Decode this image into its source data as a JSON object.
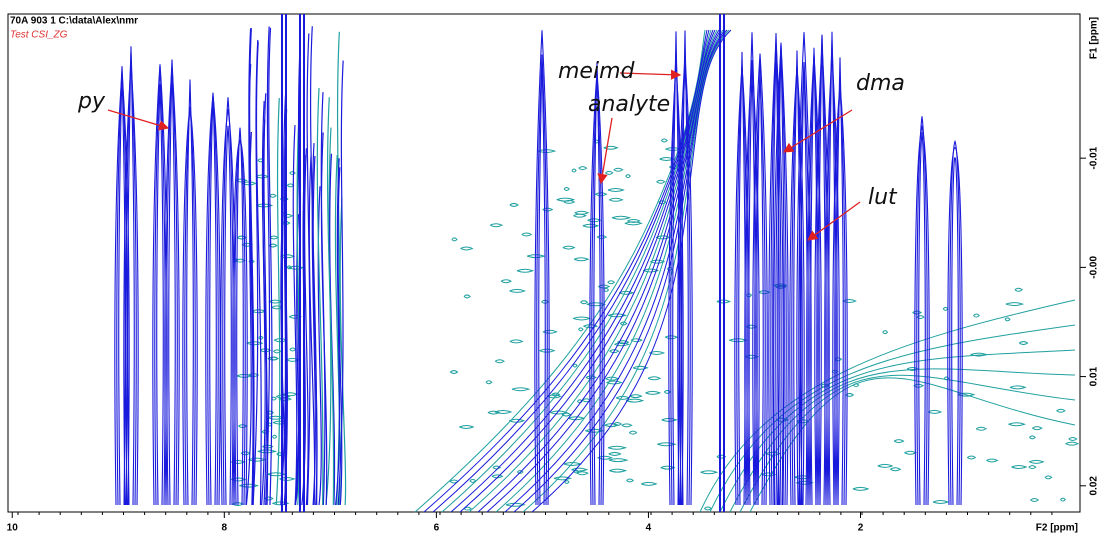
{
  "chart_data": {
    "type": "nmr2d",
    "header": "70A  903  1  C:\\data\\Alex\\nmr",
    "subtitle": "Test CSI_ZG",
    "x_label": "F2 [ppm]",
    "y_label": "F1 [ppm]",
    "xlim": [
      10.04,
      -0.07
    ],
    "xticks": [
      10,
      8,
      6,
      4,
      2
    ],
    "ylim": [
      -0.0232,
      0.0224
    ],
    "yticks": [
      -0.01,
      {
        "value": 0,
        "label": "-0.00"
      },
      0.01,
      0.02
    ],
    "colors": {
      "positive": "#1a1adc",
      "negative": "#20a0a0"
    },
    "annotations": [
      "py",
      "meimd",
      "analyte",
      "dma",
      "lut"
    ]
  }
}
